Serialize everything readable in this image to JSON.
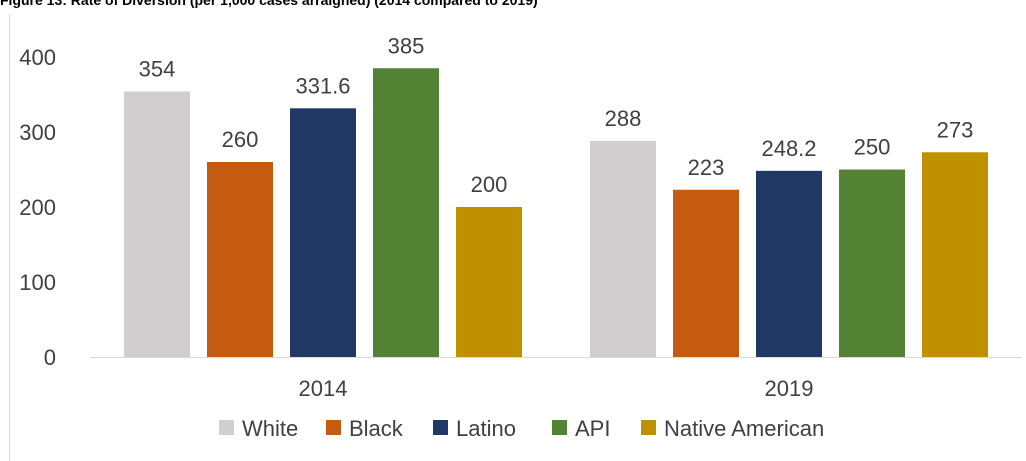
{
  "chart_data": {
    "type": "bar",
    "title": "Figure 13: Rate of Diversion (per 1,000 cases arraigned) (2014 compared to 2019)",
    "categories": [
      "2014",
      "2019"
    ],
    "series": [
      {
        "name": "White",
        "color": "#d0cece",
        "values": [
          354,
          288
        ],
        "labels": [
          "354",
          "288"
        ]
      },
      {
        "name": "Black",
        "color": "#c55a11",
        "values": [
          260,
          223
        ],
        "labels": [
          "260",
          "223"
        ]
      },
      {
        "name": "Latino",
        "color": "#203864",
        "values": [
          331.6,
          248.2
        ],
        "labels": [
          "331.6",
          "248.2"
        ]
      },
      {
        "name": "API",
        "color": "#548235",
        "values": [
          385,
          250
        ],
        "labels": [
          "385",
          "250"
        ]
      },
      {
        "name": "Native American",
        "color": "#bf9000",
        "values": [
          200,
          273
        ],
        "labels": [
          "200",
          "273"
        ]
      }
    ],
    "yticks": [
      "0",
      "100",
      "200",
      "300",
      "400"
    ],
    "ylim": [
      0,
      400
    ],
    "xlabel": "",
    "ylabel": "",
    "grid": false,
    "legend_position": "bottom"
  }
}
